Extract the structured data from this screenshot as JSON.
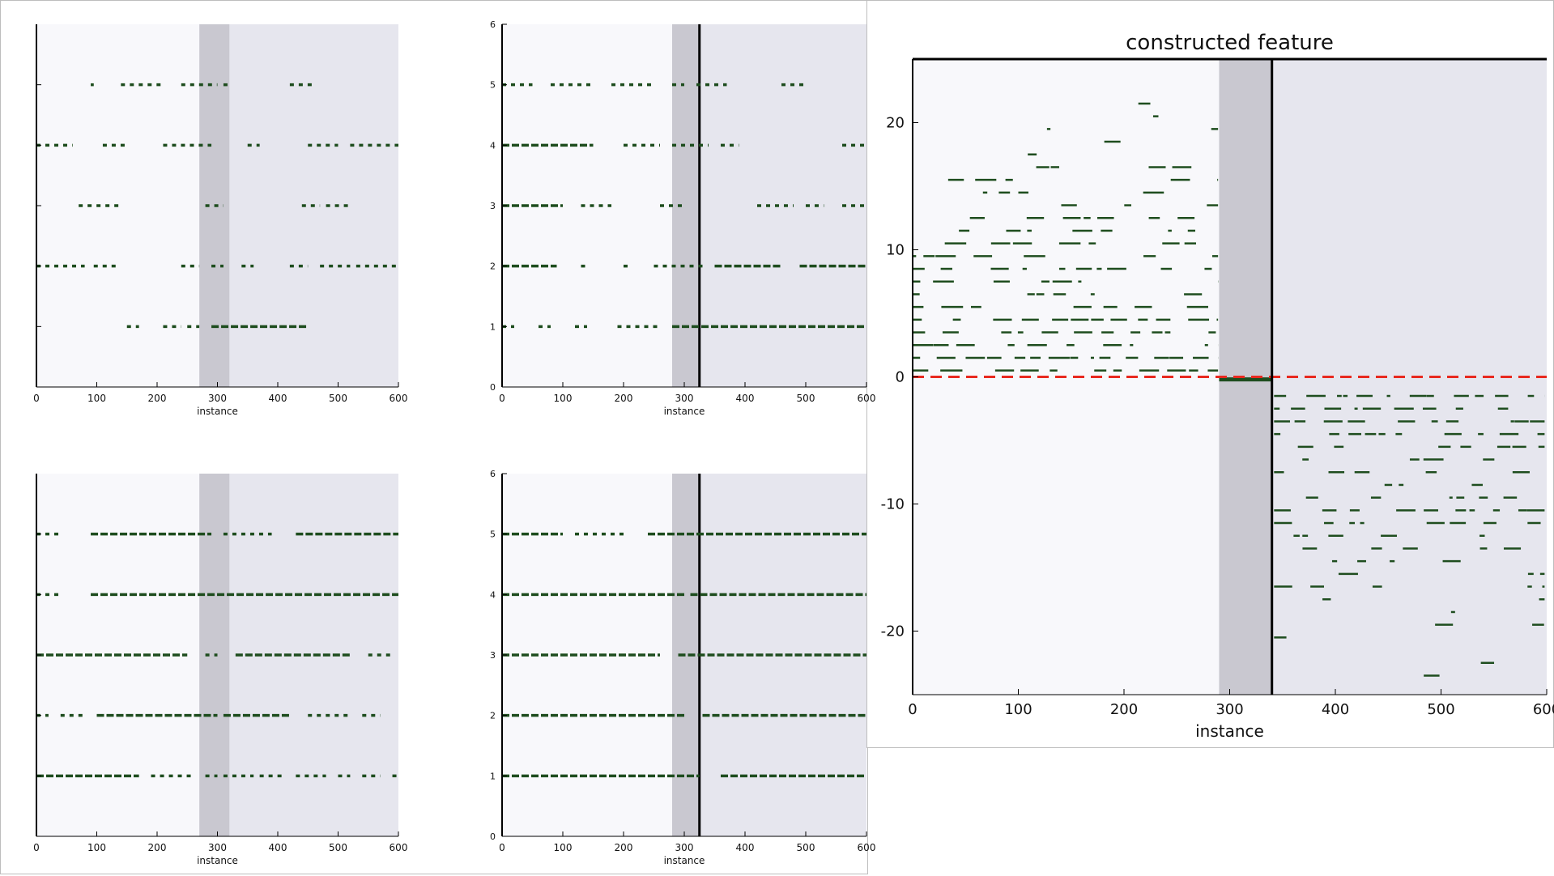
{
  "colors": {
    "point": "#1e4d1e",
    "panel_light": "#f8f8fb",
    "panel_shade": "#e6e6ee",
    "window_band": "#c9c8d0",
    "threshold": "#e8291f",
    "axis": "#000000"
  },
  "chart_data": [
    {
      "type": "scatter",
      "title": "",
      "xlabel": "instance",
      "ylabel": "",
      "xlim": [
        0,
        600
      ],
      "ylim": [
        0,
        6
      ],
      "x_ticks": [
        "0",
        "100",
        "200",
        "300",
        "400",
        "500",
        "600"
      ],
      "y_ticks": [
        "",
        "",
        "",
        "",
        ""
      ],
      "window": [
        270,
        320
      ],
      "cutoff": null,
      "series": [
        {
          "y": 1,
          "segments": [
            [
              150,
              170
            ],
            [
              210,
              240
            ],
            [
              250,
              270
            ],
            [
              290,
              450
            ]
          ]
        },
        {
          "y": 2,
          "segments": [
            [
              0,
              80
            ],
            [
              95,
              135
            ],
            [
              240,
              270
            ],
            [
              290,
              310
            ],
            [
              340,
              360
            ],
            [
              420,
              450
            ],
            [
              470,
              520
            ],
            [
              530,
              600
            ]
          ]
        },
        {
          "y": 3,
          "segments": [
            [
              70,
              140
            ],
            [
              280,
              310
            ],
            [
              440,
              470
            ],
            [
              480,
              520
            ]
          ]
        },
        {
          "y": 4,
          "segments": [
            [
              0,
              60
            ],
            [
              110,
              150
            ],
            [
              210,
              290
            ],
            [
              350,
              370
            ],
            [
              450,
              500
            ],
            [
              520,
              600
            ]
          ]
        },
        {
          "y": 5,
          "segments": [
            [
              90,
              95
            ],
            [
              140,
              210
            ],
            [
              240,
              300
            ],
            [
              310,
              320
            ],
            [
              420,
              460
            ]
          ]
        }
      ]
    },
    {
      "type": "scatter",
      "title": "",
      "xlabel": "instance",
      "ylabel": "",
      "xlim": [
        0,
        600
      ],
      "ylim": [
        0,
        6
      ],
      "x_ticks": [
        "0",
        "100",
        "200",
        "300",
        "400",
        "500",
        "600"
      ],
      "y_ticks": [
        "0",
        "1",
        "2",
        "3",
        "4",
        "5",
        "6"
      ],
      "window": [
        280,
        325
      ],
      "cutoff": 325,
      "series": [
        {
          "y": 1,
          "segments": [
            [
              0,
              20
            ],
            [
              60,
              80
            ],
            [
              120,
              140
            ],
            [
              190,
              260
            ],
            [
              280,
              600
            ]
          ]
        },
        {
          "y": 2,
          "segments": [
            [
              0,
              90
            ],
            [
              130,
              140
            ],
            [
              200,
              210
            ],
            [
              250,
              330
            ],
            [
              350,
              460
            ],
            [
              490,
              600
            ]
          ]
        },
        {
          "y": 3,
          "segments": [
            [
              0,
              100
            ],
            [
              130,
              180
            ],
            [
              260,
              300
            ],
            [
              420,
              480
            ],
            [
              500,
              530
            ],
            [
              560,
              600
            ]
          ]
        },
        {
          "y": 4,
          "segments": [
            [
              0,
              150
            ],
            [
              200,
              260
            ],
            [
              280,
              340
            ],
            [
              360,
              390
            ],
            [
              560,
              600
            ]
          ]
        },
        {
          "y": 5,
          "segments": [
            [
              0,
              50
            ],
            [
              80,
              150
            ],
            [
              180,
              250
            ],
            [
              280,
              300
            ],
            [
              320,
              370
            ],
            [
              460,
              500
            ]
          ]
        }
      ]
    },
    {
      "type": "scatter",
      "title": "",
      "xlabel": "instance",
      "ylabel": "",
      "xlim": [
        0,
        600
      ],
      "ylim": [
        0,
        6
      ],
      "x_ticks": [
        "0",
        "100",
        "200",
        "300",
        "400",
        "500",
        "600"
      ],
      "y_ticks": [
        "",
        "",
        "",
        "",
        ""
      ],
      "window": [
        270,
        320
      ],
      "cutoff": null,
      "series": [
        {
          "y": 1,
          "segments": [
            [
              0,
              170
            ],
            [
              190,
              260
            ],
            [
              280,
              300
            ],
            [
              310,
              360
            ],
            [
              370,
              410
            ],
            [
              430,
              480
            ],
            [
              500,
              520
            ],
            [
              540,
              570
            ],
            [
              590,
              600
            ]
          ]
        },
        {
          "y": 2,
          "segments": [
            [
              0,
              20
            ],
            [
              40,
              80
            ],
            [
              100,
              300
            ],
            [
              310,
              420
            ],
            [
              450,
              520
            ],
            [
              540,
              570
            ]
          ]
        },
        {
          "y": 3,
          "segments": [
            [
              0,
              250
            ],
            [
              280,
              300
            ],
            [
              330,
              520
            ],
            [
              550,
              590
            ]
          ]
        },
        {
          "y": 4,
          "segments": [
            [
              0,
              40
            ],
            [
              90,
              600
            ]
          ]
        },
        {
          "y": 5,
          "segments": [
            [
              0,
              40
            ],
            [
              90,
              290
            ],
            [
              310,
              390
            ],
            [
              430,
              600
            ]
          ]
        }
      ]
    },
    {
      "type": "scatter",
      "title": "",
      "xlabel": "instance",
      "ylabel": "",
      "xlim": [
        0,
        600
      ],
      "ylim": [
        0,
        6
      ],
      "x_ticks": [
        "0",
        "100",
        "200",
        "300",
        "400",
        "500",
        "600"
      ],
      "y_ticks": [
        "0",
        "1",
        "2",
        "3",
        "4",
        "5",
        "6"
      ],
      "window": [
        280,
        325
      ],
      "cutoff": 325,
      "series": [
        {
          "y": 1,
          "segments": [
            [
              0,
              325
            ],
            [
              360,
              600
            ]
          ]
        },
        {
          "y": 2,
          "segments": [
            [
              0,
              300
            ],
            [
              330,
              600
            ]
          ]
        },
        {
          "y": 3,
          "segments": [
            [
              0,
              260
            ],
            [
              290,
              600
            ]
          ]
        },
        {
          "y": 4,
          "segments": [
            [
              0,
              300
            ],
            [
              310,
              600
            ]
          ]
        },
        {
          "y": 5,
          "segments": [
            [
              0,
              100
            ],
            [
              120,
              200
            ],
            [
              240,
              600
            ]
          ]
        }
      ]
    },
    {
      "type": "scatter",
      "title": "constructed feature",
      "xlabel": "instance",
      "ylabel": "",
      "xlim": [
        0,
        600
      ],
      "ylim": [
        -25,
        25
      ],
      "x_ticks": [
        "0",
        "100",
        "200",
        "300",
        "400",
        "500",
        "600"
      ],
      "y_ticks": [
        "-20",
        "-10",
        "0",
        "10",
        "20"
      ],
      "window": [
        290,
        340
      ],
      "cutoff": 340,
      "threshold": 0
    }
  ]
}
